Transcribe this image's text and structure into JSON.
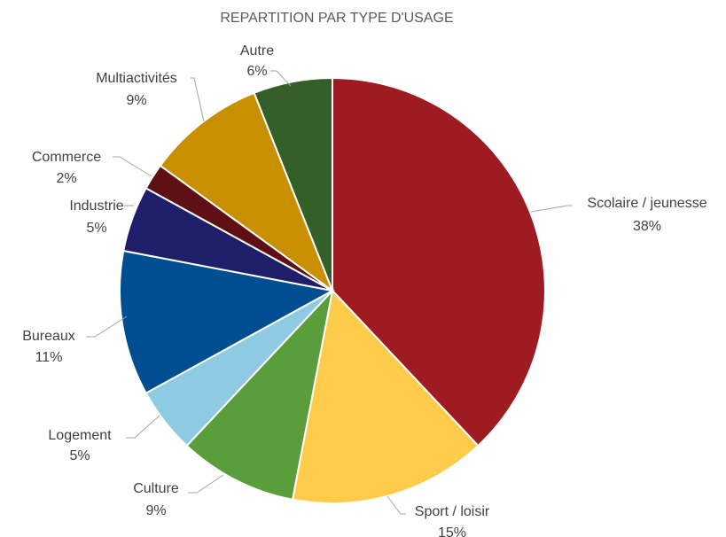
{
  "chart_data": {
    "type": "pie",
    "title": "REPARTITION PAR TYPE D'USAGE",
    "start_angle_deg": 0,
    "direction": "clockwise",
    "slices": [
      {
        "label": "Scolaire / jeunesse",
        "value": 38,
        "value_label": "38%",
        "color": "#9e1b22"
      },
      {
        "label": "Sport / loisir",
        "value": 15,
        "value_label": "15%",
        "color": "#fecb4a"
      },
      {
        "label": "Culture",
        "value": 9,
        "value_label": "9%",
        "color": "#5a9e3c"
      },
      {
        "label": "Logement",
        "value": 5,
        "value_label": "5%",
        "color": "#8ecae2"
      },
      {
        "label": "Bureaux",
        "value": 11,
        "value_label": "11%",
        "color": "#004e92"
      },
      {
        "label": "Industrie",
        "value": 5,
        "value_label": "5%",
        "color": "#1f1e6a"
      },
      {
        "label": "Commerce",
        "value": 2,
        "value_label": "2%",
        "color": "#5e1014"
      },
      {
        "label": "Multiactivités",
        "value": 9,
        "value_label": "9%",
        "color": "#c89000"
      },
      {
        "label": "Autre",
        "value": 6,
        "value_label": "6%",
        "color": "#345f28"
      }
    ]
  }
}
